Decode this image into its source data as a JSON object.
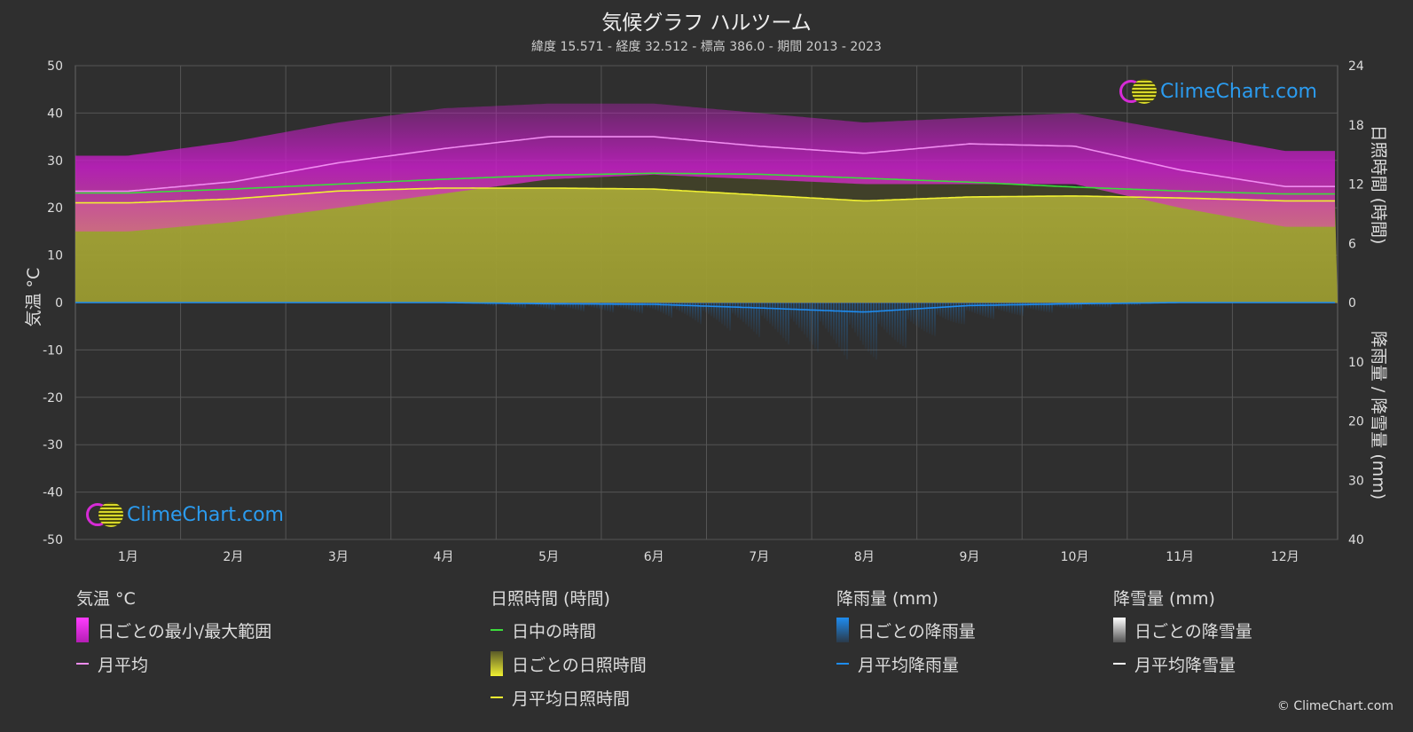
{
  "header": {
    "title": "気候グラフ ハルツーム",
    "subtitle": "緯度 15.571 - 経度 32.512 - 標高 386.0 - 期間 2013 - 2023"
  },
  "watermark": {
    "text": "ClimeChart.com",
    "copyright": "© ClimeChart.com"
  },
  "colors": {
    "background": "#2f2f2f",
    "temp_range": "#c81ec8",
    "temp_avg": "#f08cf0",
    "daylight": "#3cdc3c",
    "sunshine_fill": "#9e9e32",
    "sunshine_avg": "#f0f032",
    "rain": "#1e78c8",
    "rain_avg": "#1e8cf0",
    "snow": "#ffffff",
    "grid": "#5a5a5a",
    "brand_blue": "#2b9cf0"
  },
  "chart_data": {
    "type": "area",
    "categories": [
      "1月",
      "2月",
      "3月",
      "4月",
      "5月",
      "6月",
      "7月",
      "8月",
      "9月",
      "10月",
      "11月",
      "12月"
    ],
    "y_left": {
      "label": "気温 °C",
      "range": [
        -50,
        50
      ],
      "ticks": [
        50,
        40,
        30,
        20,
        10,
        0,
        -10,
        -20,
        -30,
        -40,
        -50
      ]
    },
    "y_right_top": {
      "label": "日照時間 (時間)",
      "range": [
        0,
        24
      ],
      "ticks": [
        24,
        18,
        12,
        6,
        0
      ]
    },
    "y_right_bottom": {
      "label": "降雨量 / 降雪量 (mm)",
      "range": [
        0,
        40
      ],
      "ticks": [
        10,
        20,
        30,
        40
      ]
    },
    "grid": true,
    "series": [
      {
        "name": "月平均",
        "unit": "°C",
        "values": [
          23.5,
          25.5,
          29.5,
          32.5,
          35,
          35,
          33,
          31.5,
          33.5,
          33,
          28,
          24.5
        ]
      },
      {
        "name": "日中の時間",
        "unit": "時間",
        "values": [
          11.1,
          11.5,
          12.0,
          12.5,
          12.9,
          13.1,
          13.0,
          12.6,
          12.2,
          11.7,
          11.3,
          11.0
        ]
      },
      {
        "name": "月平均日照時間",
        "unit": "時間",
        "values": [
          10.1,
          10.5,
          11.3,
          11.6,
          11.6,
          11.5,
          10.9,
          10.3,
          10.7,
          10.8,
          10.6,
          10.3
        ]
      },
      {
        "name": "月平均降雨量",
        "unit": "mm",
        "values": [
          0,
          0,
          0,
          0,
          0.2,
          0.3,
          0.9,
          1.6,
          0.5,
          0.2,
          0,
          0
        ]
      },
      {
        "name": "月平均降雪量",
        "unit": "mm",
        "values": [
          0,
          0,
          0,
          0,
          0,
          0,
          0,
          0,
          0,
          0,
          0,
          0
        ]
      }
    ],
    "temp_range": {
      "name": "日ごとの最小/最大範囲",
      "min": [
        15,
        17,
        20,
        23,
        26,
        27,
        26,
        25,
        25,
        25,
        20,
        16
      ],
      "max": [
        31,
        34,
        38,
        41,
        42,
        42,
        40,
        38,
        39,
        40,
        36,
        32
      ]
    }
  },
  "legend": {
    "temp": {
      "header": "気温 °C",
      "items": [
        "日ごとの最小/最大範囲",
        "月平均"
      ]
    },
    "sun": {
      "header": "日照時間 (時間)",
      "items": [
        "日中の時間",
        "日ごとの日照時間",
        "月平均日照時間"
      ]
    },
    "rain": {
      "header": "降雨量 (mm)",
      "items": [
        "日ごとの降雨量",
        "月平均降雨量"
      ]
    },
    "snow": {
      "header": "降雪量 (mm)",
      "items": [
        "日ごとの降雪量",
        "月平均降雪量"
      ]
    }
  }
}
